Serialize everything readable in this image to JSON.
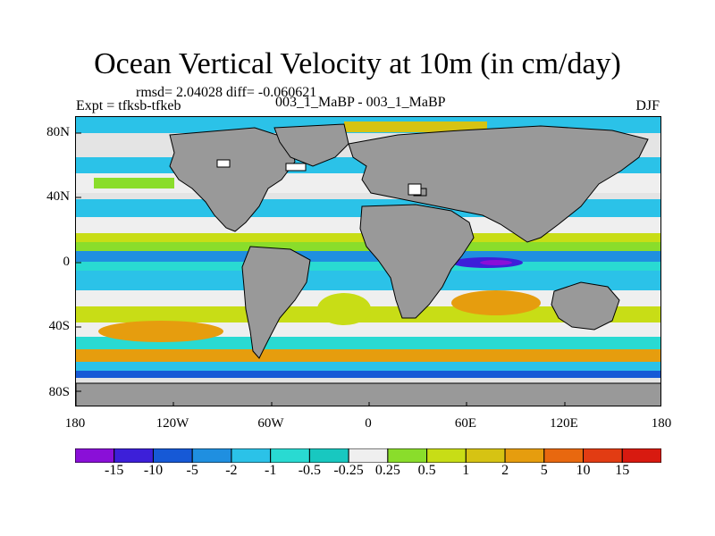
{
  "title": "Ocean Vertical Velocity at 10m (in cm/day)",
  "stats_text": "rmsd= 2.04028 diff= -0.060621",
  "experiment_text": "Expt = tfksb-tfkeb",
  "cases_text": "003_1_MaBP - 003_1_MaBP",
  "season": "DJF",
  "lat_labels": [
    "80N",
    "40N",
    "0",
    "40S",
    "80S"
  ],
  "lon_labels": [
    "180",
    "120W",
    "60W",
    "0",
    "60E",
    "120E",
    "180"
  ],
  "colorbar": {
    "labels": [
      "-15",
      "-10",
      "-5",
      "-2",
      "-1",
      "-0.5",
      "-0.25",
      "0.25",
      "0.5",
      "1",
      "2",
      "5",
      "10",
      "15"
    ],
    "colors": [
      "#8a0fd8",
      "#3d1fd9",
      "#1659d6",
      "#1f8fe0",
      "#2bc2e8",
      "#29dad2",
      "#18c8c0",
      "#efefef",
      "#8add2b",
      "#c8dd16",
      "#d6c313",
      "#e69d0e",
      "#e8680f",
      "#e23c13",
      "#d81a10"
    ]
  },
  "map_colors": {
    "land": "#999999",
    "near_zero": "#e4e4e4"
  }
}
